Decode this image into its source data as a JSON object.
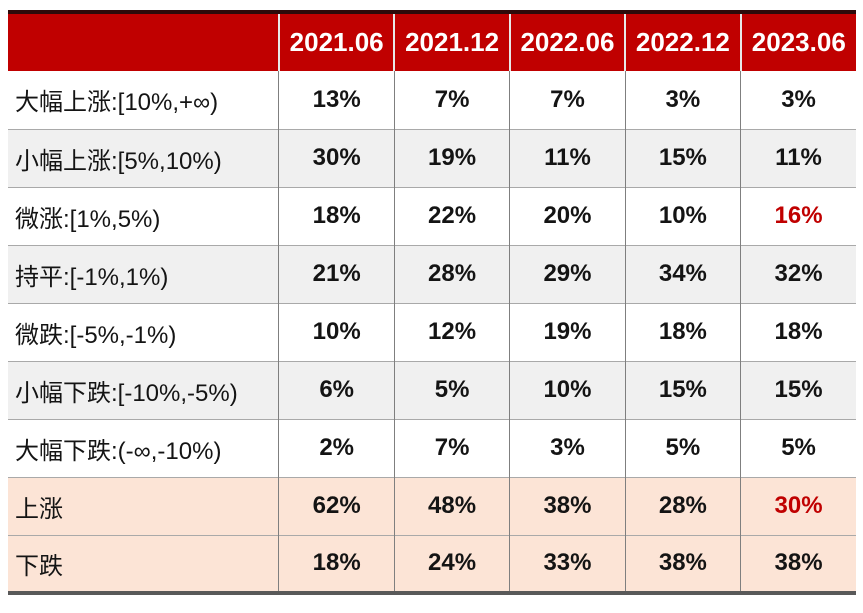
{
  "colors": {
    "header_bg": "#C00000",
    "header_text": "#FFFFFF",
    "body_text": "#141414",
    "highlight_text": "#C00000",
    "alt_row_bg": "#F0F0F0",
    "summary_row_bg": "#FCE4D6",
    "top_border": "#2E0A0A",
    "bottom_border": "#595959",
    "v_divider": "#7F7F7F",
    "h_divider": "#A9A9A9",
    "header_divider": "#E8E8E8"
  },
  "chart_data": {
    "type": "table",
    "title": "",
    "columns": [
      "",
      "2021.06",
      "2021.12",
      "2022.06",
      "2022.12",
      "2023.06"
    ],
    "rows": [
      {
        "label": "大幅上涨:[10%,+∞)",
        "values": [
          "13%",
          "7%",
          "7%",
          "3%",
          "3%"
        ]
      },
      {
        "label": "小幅上涨:[5%,10%)",
        "values": [
          "30%",
          "19%",
          "11%",
          "15%",
          "11%"
        ]
      },
      {
        "label": "微涨:[1%,5%)",
        "values": [
          "18%",
          "22%",
          "20%",
          "10%",
          "16%"
        ]
      },
      {
        "label": "持平:[-1%,1%)",
        "values": [
          "21%",
          "28%",
          "29%",
          "34%",
          "32%"
        ]
      },
      {
        "label": "微跌:[-5%,-1%)",
        "values": [
          "10%",
          "12%",
          "19%",
          "18%",
          "18%"
        ]
      },
      {
        "label": "小幅下跌:[-10%,-5%)",
        "values": [
          "6%",
          "5%",
          "10%",
          "15%",
          "15%"
        ]
      },
      {
        "label": "大幅下跌:(-∞,-10%)",
        "values": [
          "2%",
          "7%",
          "3%",
          "5%",
          "5%"
        ]
      },
      {
        "label": "上涨",
        "values": [
          "62%",
          "48%",
          "38%",
          "28%",
          "30%"
        ]
      },
      {
        "label": "下跌",
        "values": [
          "18%",
          "24%",
          "33%",
          "38%",
          "38%"
        ]
      }
    ],
    "summary_row_indices": [
      7,
      8
    ],
    "highlight_cells": [
      {
        "row": 2,
        "col": 4,
        "value": "16%"
      },
      {
        "row": 7,
        "col": 4,
        "value": "30%"
      }
    ],
    "legend_position": "none",
    "grid": true
  }
}
